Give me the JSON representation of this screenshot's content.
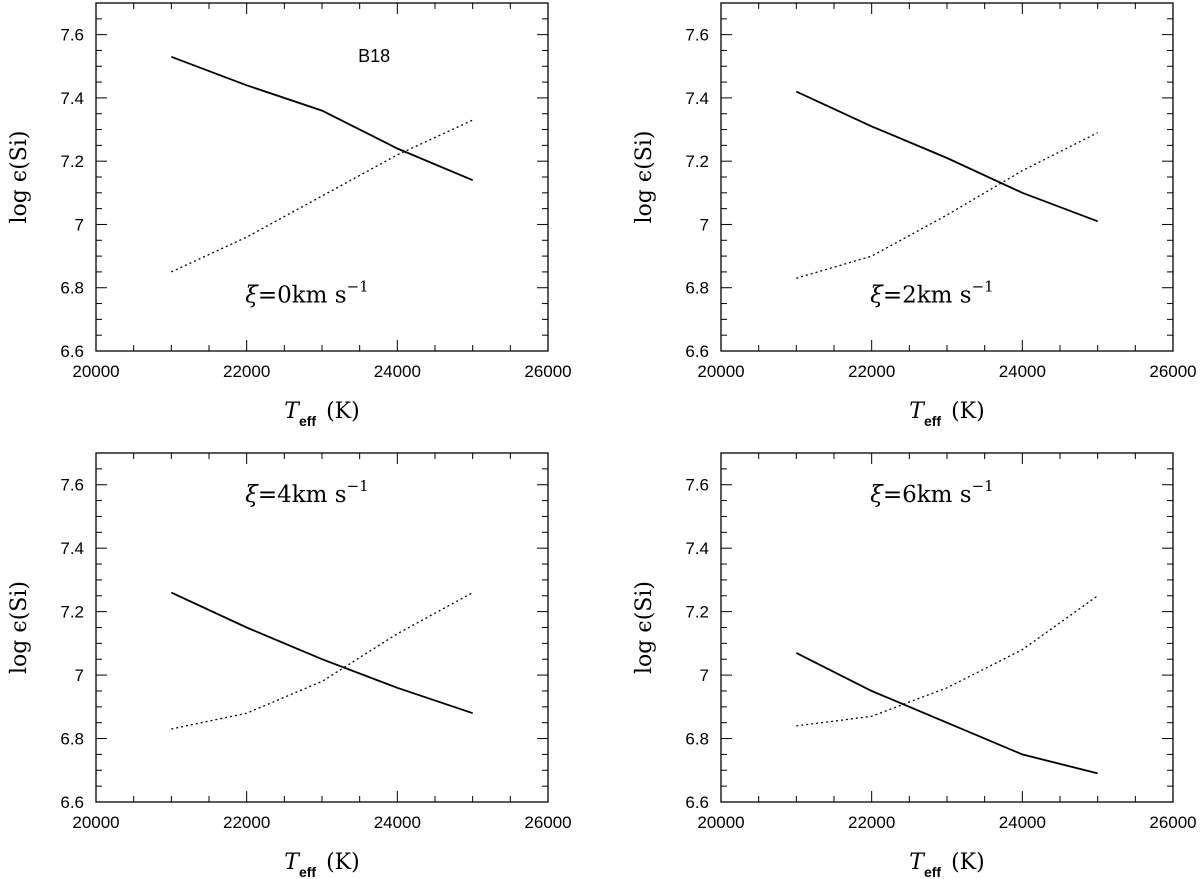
{
  "figure": {
    "ylabel_pre": "log ",
    "ylabel_sym": "ϵ",
    "ylabel_post": "(Si)",
    "xlabel_main": "T",
    "xlabel_sub": "eff",
    "xlabel_unit": "(K)"
  },
  "chart_data": [
    {
      "type": "line",
      "xlim": [
        20000,
        26000
      ],
      "ylim": [
        6.6,
        7.7
      ],
      "xticks": [
        "20000",
        "22000",
        "24000",
        "26000"
      ],
      "yticks": [
        "6.6",
        "6.8",
        "7",
        "7.2",
        "7.4",
        "7.6"
      ],
      "annotation": {
        "xi_sym": "ξ",
        "xi_text": "=0km  s",
        "sup": "−1"
      },
      "tag": "B18",
      "series": [
        {
          "style": "solid",
          "x": [
            21000,
            22000,
            23000,
            24000,
            25000
          ],
          "y": [
            7.53,
            7.44,
            7.36,
            7.24,
            7.14
          ]
        },
        {
          "style": "dotted",
          "x": [
            21000,
            22000,
            23000,
            24000,
            25000
          ],
          "y": [
            6.85,
            6.96,
            7.09,
            7.22,
            7.33
          ]
        }
      ]
    },
    {
      "type": "line",
      "xlim": [
        20000,
        26000
      ],
      "ylim": [
        6.6,
        7.7
      ],
      "xticks": [
        "20000",
        "22000",
        "24000",
        "26000"
      ],
      "yticks": [
        "6.6",
        "6.8",
        "7",
        "7.2",
        "7.4",
        "7.6"
      ],
      "annotation": {
        "xi_sym": "ξ",
        "xi_text": "=2km  s",
        "sup": "−1"
      },
      "tag": "",
      "series": [
        {
          "style": "solid",
          "x": [
            21000,
            22000,
            23000,
            24000,
            25000
          ],
          "y": [
            7.42,
            7.31,
            7.21,
            7.1,
            7.01
          ]
        },
        {
          "style": "dotted",
          "x": [
            21000,
            22000,
            23000,
            24000,
            25000
          ],
          "y": [
            6.83,
            6.9,
            7.03,
            7.17,
            7.29
          ]
        }
      ]
    },
    {
      "type": "line",
      "xlim": [
        20000,
        26000
      ],
      "ylim": [
        6.6,
        7.7
      ],
      "xticks": [
        "20000",
        "22000",
        "24000",
        "26000"
      ],
      "yticks": [
        "6.6",
        "6.8",
        "7",
        "7.2",
        "7.4",
        "7.6"
      ],
      "annotation": {
        "xi_sym": "ξ",
        "xi_text": "=4km  s",
        "sup": "−1"
      },
      "tag": "",
      "series": [
        {
          "style": "solid",
          "x": [
            21000,
            22000,
            23000,
            24000,
            25000
          ],
          "y": [
            7.26,
            7.15,
            7.05,
            6.96,
            6.88
          ]
        },
        {
          "style": "dotted",
          "x": [
            21000,
            22000,
            23000,
            24000,
            25000
          ],
          "y": [
            6.83,
            6.88,
            6.98,
            7.13,
            7.26
          ]
        }
      ]
    },
    {
      "type": "line",
      "xlim": [
        20000,
        26000
      ],
      "ylim": [
        6.6,
        7.7
      ],
      "xticks": [
        "20000",
        "22000",
        "24000",
        "26000"
      ],
      "yticks": [
        "6.6",
        "6.8",
        "7",
        "7.2",
        "7.4",
        "7.6"
      ],
      "annotation": {
        "xi_sym": "ξ",
        "xi_text": "=6km  s",
        "sup": "−1"
      },
      "tag": "",
      "series": [
        {
          "style": "solid",
          "x": [
            21000,
            22000,
            23000,
            24000,
            25000
          ],
          "y": [
            7.07,
            6.95,
            6.85,
            6.75,
            6.69
          ]
        },
        {
          "style": "dotted",
          "x": [
            21000,
            22000,
            23000,
            24000,
            25000
          ],
          "y": [
            6.84,
            6.87,
            6.96,
            7.08,
            7.25
          ]
        }
      ]
    }
  ]
}
